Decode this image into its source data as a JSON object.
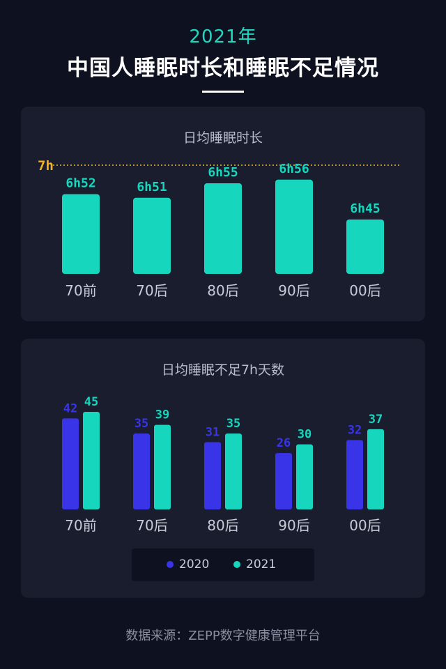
{
  "header": {
    "year": "2021年",
    "title": "中国人睡眠时长和睡眠不足情况"
  },
  "colors": {
    "background": "#0e1120",
    "card": "#1a1d2e",
    "teal": "#16d6bd",
    "blue": "#3a34e8",
    "gold": "#f2b320"
  },
  "chart_data": [
    {
      "type": "bar",
      "title": "日均睡眠时长",
      "categories": [
        "70前",
        "70后",
        "80后",
        "90后",
        "00后"
      ],
      "values": [
        6.8667,
        6.85,
        6.9167,
        6.9333,
        6.75
      ],
      "value_labels": [
        "6h52",
        "6h51",
        "6h55",
        "6h56",
        "6h45"
      ],
      "reference_line": {
        "value": 7,
        "label": "7h"
      },
      "ylim": [
        6.5,
        7
      ]
    },
    {
      "type": "bar",
      "title": "日均睡眠不足7h天数",
      "categories": [
        "70前",
        "70后",
        "80后",
        "90后",
        "00后"
      ],
      "series": [
        {
          "name": "2020",
          "values": [
            42,
            35,
            31,
            26,
            32
          ]
        },
        {
          "name": "2021",
          "values": [
            45,
            39,
            35,
            30,
            37
          ]
        }
      ],
      "ylim": [
        0,
        45
      ],
      "legend": "bottom"
    }
  ],
  "source": "数据来源：ZEPP数字健康管理平台"
}
